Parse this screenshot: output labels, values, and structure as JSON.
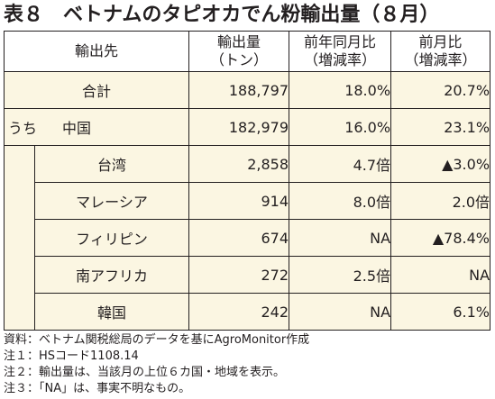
{
  "title": "表８　ベトナムのタピオカでん粉輸出量（８月）",
  "headers": {
    "destination": "輸出先",
    "volume_line1": "輸出量",
    "volume_line2": "（トン）",
    "yoy_line1": "前年同月比",
    "yoy_line2": "（増減率）",
    "mom_line1": "前月比",
    "mom_line2": "（増減率）"
  },
  "total": {
    "label": "合計",
    "volume": "188,797",
    "yoy": "18.0%",
    "mom": "20.7%"
  },
  "sub_prefix": "うち",
  "rows": [
    {
      "label": "中国",
      "volume": "182,979",
      "yoy": "16.0%",
      "mom": "23.1%"
    },
    {
      "label": "台湾",
      "volume": "2,858",
      "yoy": "4.7倍",
      "mom": "▲3.0%"
    },
    {
      "label": "マレーシア",
      "volume": "914",
      "yoy": "8.0倍",
      "mom": "2.0倍"
    },
    {
      "label": "フィリピン",
      "volume": "674",
      "yoy": "NA",
      "mom": "▲78.4%"
    },
    {
      "label": "南アフリカ",
      "volume": "272",
      "yoy": "2.5倍",
      "mom": "NA"
    },
    {
      "label": "韓国",
      "volume": "242",
      "yoy": "NA",
      "mom": "6.1%"
    }
  ],
  "notes": [
    "資料：ベトナム関税総局のデータを基にAgroMonitor作成",
    "注１：HSコード1108.14",
    "注２：輸出量は、当該月の上位６カ国・地域を表示。",
    "注３：「NA」は、事実不明なもの。"
  ]
}
